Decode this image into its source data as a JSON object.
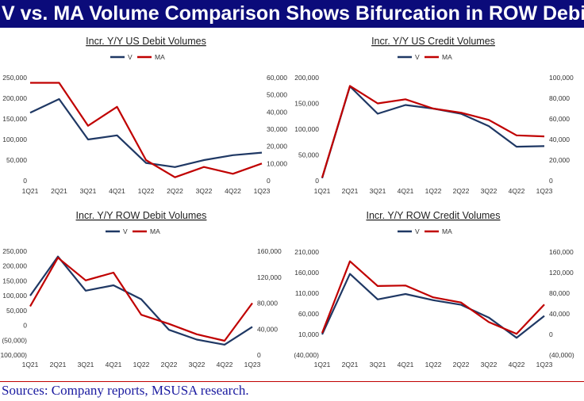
{
  "header": {
    "title": "V vs. MA Volume Comparison Shows Bifurcation in ROW Debit"
  },
  "footer": {
    "source": "Sources: Company reports, MSUSA research."
  },
  "colors": {
    "title_bg": "#0b0b7a",
    "V": "#1f3864",
    "MA": "#c00000",
    "source_text": "#1a1aa0",
    "rule": "#c00000"
  },
  "chart_data": [
    {
      "type": "line",
      "title": "Incr. Y/Y US Debit Volumes",
      "categories": [
        "1Q21",
        "2Q21",
        "3Q21",
        "4Q21",
        "1Q22",
        "2Q22",
        "3Q22",
        "4Q22",
        "1Q23"
      ],
      "left_ticks": [
        "250,000",
        "200,000",
        "150,000",
        "100,000",
        "50,000",
        "0"
      ],
      "right_ticks": [
        "60,000",
        "50,000",
        "40,000",
        "30,000",
        "20,000",
        "10,000",
        "0"
      ],
      "ylim_left": [
        0,
        250000
      ],
      "ylim_right": [
        0,
        60000
      ],
      "legend": "top-center",
      "series": [
        {
          "name": "V",
          "axis": "left",
          "values": [
            165000,
            198000,
            100000,
            110000,
            43000,
            33000,
            50000,
            62000,
            68000
          ]
        },
        {
          "name": "MA",
          "axis": "right",
          "values": [
            57000,
            57000,
            32000,
            43000,
            12000,
            2000,
            8000,
            4000,
            10000
          ]
        }
      ]
    },
    {
      "type": "line",
      "title": "Incr. Y/Y US Credit Volumes",
      "categories": [
        "1Q21",
        "2Q21",
        "3Q21",
        "4Q21",
        "1Q22",
        "2Q22",
        "3Q22",
        "4Q22",
        "1Q23"
      ],
      "left_ticks": [
        "200,000",
        "150,000",
        "100,000",
        "50,000",
        "0"
      ],
      "right_ticks": [
        "100,000",
        "80,000",
        "60,000",
        "40,000",
        "20,000",
        "0"
      ],
      "ylim_left": [
        0,
        200000
      ],
      "ylim_right": [
        0,
        100000
      ],
      "legend": "top-center",
      "series": [
        {
          "name": "V",
          "axis": "left",
          "values": [
            5000,
            183000,
            130000,
            147000,
            140000,
            130000,
            106000,
            66000,
            67000
          ]
        },
        {
          "name": "MA",
          "axis": "right",
          "values": [
            3000,
            92000,
            75000,
            79000,
            70000,
            66000,
            59000,
            44000,
            43000
          ]
        }
      ]
    },
    {
      "type": "line",
      "title": "Incr. Y/Y ROW Debit Volumes",
      "categories": [
        "1Q21",
        "2Q21",
        "3Q21",
        "4Q21",
        "1Q22",
        "2Q22",
        "3Q22",
        "4Q22",
        "1Q23"
      ],
      "left_ticks": [
        "250,000",
        "200,000",
        "150,000",
        "100,000",
        "50,000",
        "0",
        "(50,000)",
        "(100,000)"
      ],
      "right_ticks": [
        "160,000",
        "120,000",
        "80,000",
        "40,000",
        "0"
      ],
      "ylim_left": [
        -100000,
        250000
      ],
      "ylim_right": [
        0,
        160000
      ],
      "legend": "top-center",
      "series": [
        {
          "name": "V",
          "axis": "left",
          "values": [
            100000,
            232000,
            117000,
            135000,
            88000,
            -15000,
            -48000,
            -65000,
            -5000
          ]
        },
        {
          "name": "MA",
          "axis": "right",
          "values": [
            75000,
            150000,
            115000,
            127000,
            62000,
            48000,
            32000,
            22000,
            80000
          ]
        }
      ]
    },
    {
      "type": "line",
      "title": "Incr. Y/Y ROW Credit Volumes",
      "categories": [
        "1Q21",
        "2Q21",
        "3Q21",
        "4Q21",
        "1Q22",
        "2Q22",
        "3Q22",
        "4Q22",
        "1Q23"
      ],
      "left_ticks": [
        "210,000",
        "160,000",
        "110,000",
        "60,000",
        "10,000",
        "(40,000)"
      ],
      "right_ticks": [
        "160,000",
        "120,000",
        "80,000",
        "40,000",
        "0",
        "(40,000)"
      ],
      "ylim_left": [
        -40000,
        210000
      ],
      "ylim_right": [
        -40000,
        160000
      ],
      "legend": "top-center",
      "series": [
        {
          "name": "V",
          "axis": "left",
          "values": [
            10000,
            157000,
            95000,
            108000,
            93000,
            82000,
            51000,
            2000,
            55000
          ]
        },
        {
          "name": "MA",
          "axis": "right",
          "values": [
            3000,
            142000,
            94000,
            95000,
            72000,
            62000,
            24000,
            1000,
            58000
          ]
        }
      ]
    }
  ]
}
